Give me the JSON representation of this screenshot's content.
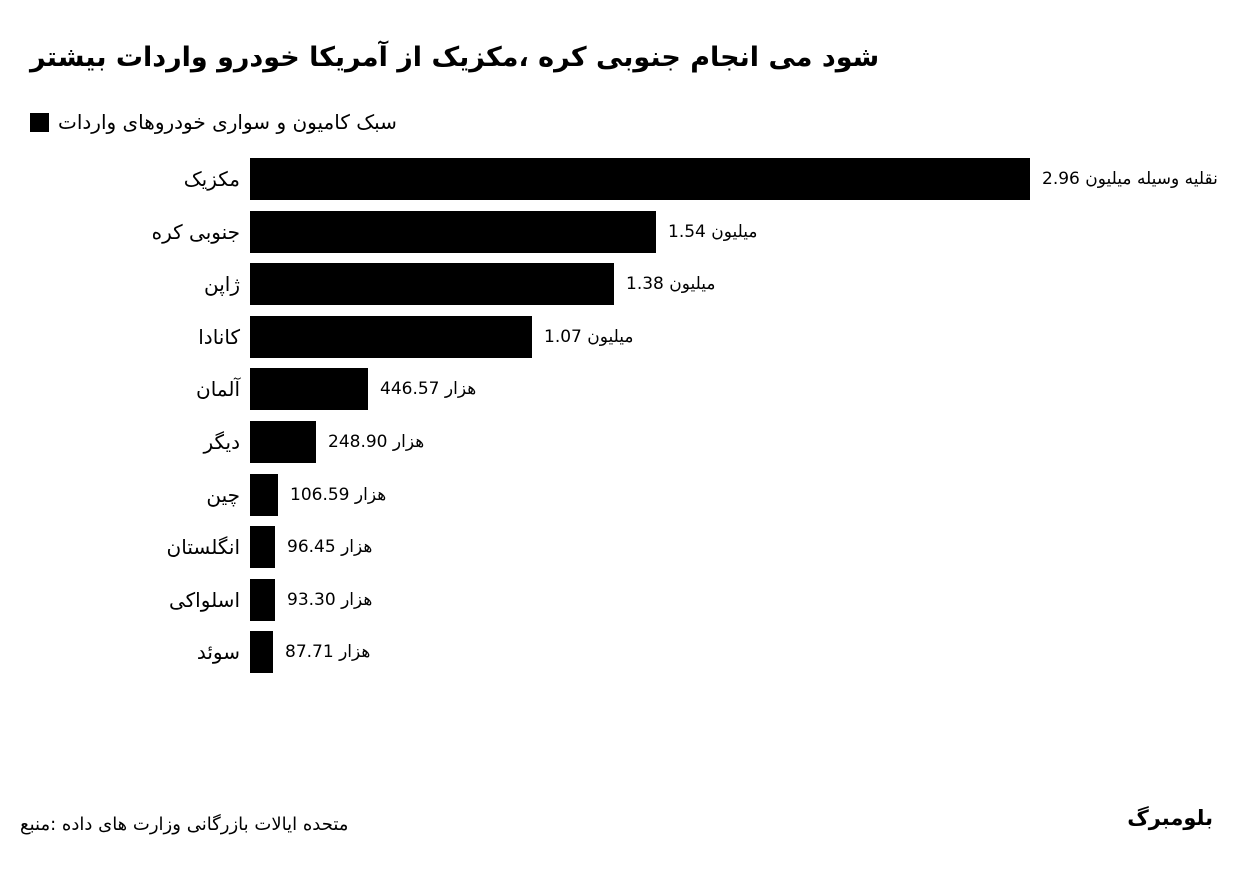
{
  "meta": {
    "background_color": "#ffffff",
    "bar_color": "#000000",
    "text_color": "#000000"
  },
  "header": {
    "title": "بیشتر واردات خودرو آمریکا از مکزیک، کره جنوبی انجام می شود"
  },
  "legend": {
    "swatch_color": "#000000",
    "label": "واردات خودروهای سواری و کامیون سبک"
  },
  "footer": {
    "source": "منبع: داده های وزارت بازرگانی ایالات متحده",
    "brand": "بلومبرگ"
  },
  "chart_data": {
    "type": "bar",
    "orientation": "horizontal",
    "title": "بیشتر واردات خودرو آمریکا از مکزیک، کره جنوبی انجام می شود",
    "legend_label": "واردات خودروهای سواری و کامیون سبک",
    "legend_position": "top-left",
    "grid": false,
    "xlim": [
      0,
      2960000
    ],
    "bar_color": "#000000",
    "categories": [
      "مکزیک",
      "کره جنوبی",
      "ژاپن",
      "کانادا",
      "آلمان",
      "دیگر",
      "چین",
      "انگلستان",
      "اسلواکی",
      "سوئد"
    ],
    "values": [
      2960000,
      1540000,
      1380000,
      1070000,
      446570,
      248900,
      106590,
      96450,
      93300,
      87710
    ],
    "value_labels": [
      {
        "number": "2.96",
        "unit": "میلیون وسیله نقلیه"
      },
      {
        "number": "1.54",
        "unit": "میلیون"
      },
      {
        "number": "1.38",
        "unit": "میلیون"
      },
      {
        "number": "1.07",
        "unit": "میلیون"
      },
      {
        "number": "446.57",
        "unit": "هزار"
      },
      {
        "number": "248.90",
        "unit": "هزار"
      },
      {
        "number": "106.59",
        "unit": "هزار"
      },
      {
        "number": "96.45",
        "unit": "هزار"
      },
      {
        "number": "93.30",
        "unit": "هزار"
      },
      {
        "number": "87.71",
        "unit": "هزار"
      }
    ]
  }
}
